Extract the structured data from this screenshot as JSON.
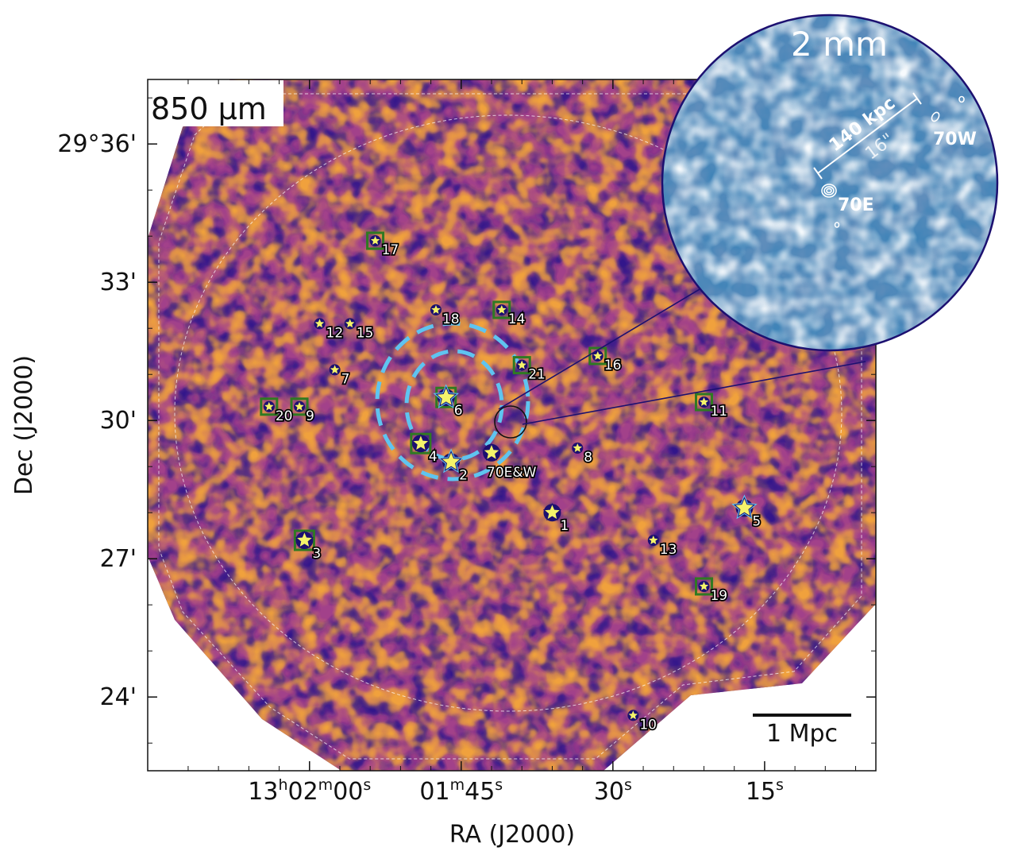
{
  "chart_data": {
    "type": "scatter",
    "panel_label": "850 µm",
    "xlabel": "RA (J2000)",
    "ylabel": "Dec (J2000)",
    "x_ticks": [
      {
        "label_main": "13",
        "label_h": "h",
        "label_m_val": "02",
        "label_m": "m",
        "label_s_val": "00",
        "label_s": "s",
        "ra_sec": 60
      },
      {
        "label_main": "",
        "label_h": "",
        "label_m_val": "01",
        "label_m": "m",
        "label_s_val": "45",
        "label_s": "s",
        "ra_sec": 45
      },
      {
        "label_main": "",
        "label_h": "",
        "label_m_val": "",
        "label_m": "",
        "label_s_val": "30",
        "label_s": "s",
        "ra_sec": 30
      },
      {
        "label_main": "",
        "label_h": "",
        "label_m_val": "",
        "label_m": "",
        "label_s_val": "15",
        "label_s": "s",
        "ra_sec": 15
      }
    ],
    "y_ticks": [
      {
        "label": "29°36'",
        "dec_arcmin": 36
      },
      {
        "label": "33'",
        "dec_arcmin": 33
      },
      {
        "label": "30'",
        "dec_arcmin": 30
      },
      {
        "label": "27'",
        "dec_arcmin": 27
      },
      {
        "label": "24'",
        "dec_arcmin": 24
      }
    ],
    "ra_range_sec": [
      4,
      76
    ],
    "dec_range_arcmin": [
      22.4,
      37.4
    ],
    "scale_bar_label": "1 Mpc",
    "sources": [
      {
        "id": "1",
        "ra_sec": 36.0,
        "dec_arcmin": 28.0,
        "size": "large",
        "box": false,
        "halo": false
      },
      {
        "id": "2",
        "ra_sec": 46.0,
        "dec_arcmin": 29.1,
        "size": "large",
        "box": false,
        "halo": true
      },
      {
        "id": "3",
        "ra_sec": 60.5,
        "dec_arcmin": 27.4,
        "size": "large",
        "box": true,
        "halo": false
      },
      {
        "id": "4",
        "ra_sec": 49.0,
        "dec_arcmin": 29.5,
        "size": "large",
        "box": true,
        "halo": false
      },
      {
        "id": "5",
        "ra_sec": 17.0,
        "dec_arcmin": 28.1,
        "size": "large",
        "box": false,
        "halo": true
      },
      {
        "id": "6",
        "ra_sec": 46.5,
        "dec_arcmin": 30.5,
        "size": "large",
        "box": true,
        "halo": true
      },
      {
        "id": "7",
        "ra_sec": 57.5,
        "dec_arcmin": 31.1,
        "size": "small",
        "box": false,
        "halo": false
      },
      {
        "id": "8",
        "ra_sec": 33.5,
        "dec_arcmin": 29.4,
        "size": "small",
        "box": false,
        "halo": false
      },
      {
        "id": "9",
        "ra_sec": 61.0,
        "dec_arcmin": 30.3,
        "size": "small",
        "box": true,
        "halo": false
      },
      {
        "id": "10",
        "ra_sec": 28.0,
        "dec_arcmin": 23.6,
        "size": "small",
        "box": false,
        "halo": false
      },
      {
        "id": "11",
        "ra_sec": 21.0,
        "dec_arcmin": 30.4,
        "size": "small",
        "box": true,
        "halo": false
      },
      {
        "id": "12",
        "ra_sec": 59.0,
        "dec_arcmin": 32.1,
        "size": "small",
        "box": false,
        "halo": false
      },
      {
        "id": "13",
        "ra_sec": 26.0,
        "dec_arcmin": 27.4,
        "size": "small",
        "box": false,
        "halo": false
      },
      {
        "id": "14",
        "ra_sec": 41.0,
        "dec_arcmin": 32.4,
        "size": "small",
        "box": true,
        "halo": false
      },
      {
        "id": "15",
        "ra_sec": 56.0,
        "dec_arcmin": 32.1,
        "size": "small",
        "box": false,
        "halo": false
      },
      {
        "id": "16",
        "ra_sec": 31.5,
        "dec_arcmin": 31.4,
        "size": "small",
        "box": true,
        "halo": false
      },
      {
        "id": "17",
        "ra_sec": 53.5,
        "dec_arcmin": 33.9,
        "size": "small",
        "box": true,
        "halo": false
      },
      {
        "id": "18",
        "ra_sec": 47.5,
        "dec_arcmin": 32.4,
        "size": "small",
        "box": false,
        "halo": false
      },
      {
        "id": "19",
        "ra_sec": 21.0,
        "dec_arcmin": 26.4,
        "size": "small",
        "box": true,
        "halo": false
      },
      {
        "id": "20",
        "ra_sec": 64.0,
        "dec_arcmin": 30.3,
        "size": "small",
        "box": true,
        "halo": false
      },
      {
        "id": "21",
        "ra_sec": 39.0,
        "dec_arcmin": 31.2,
        "size": "small",
        "box": true,
        "halo": false
      },
      {
        "id": "70E&W",
        "ra_sec": 42.0,
        "dec_arcmin": 29.3,
        "size": "large",
        "box": false,
        "halo": false
      }
    ],
    "inset": {
      "title": "2 mm",
      "scale_label": "140 kpc",
      "angle_label": "16\"",
      "source_labels": [
        "70E",
        "70W"
      ]
    },
    "colors": {
      "map_dark": "#2d1783",
      "map_mid": "#a2418a",
      "map_bright": "#f6a43a",
      "star_fill": "#f4f46a",
      "star_outline": "#1c1070",
      "box": "#2f7a22",
      "halo": "#5fc4f0",
      "inset_dark": "#0d3a7a",
      "inset_light": "#e6f0f7"
    }
  }
}
